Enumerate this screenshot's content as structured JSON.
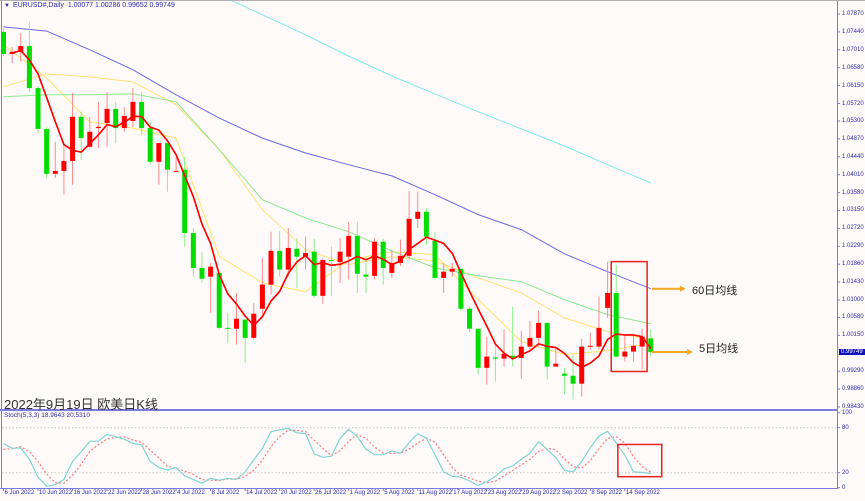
{
  "header": {
    "symbol_label": "EURUSD#,Daily",
    "ohlc_text": "1.00077 1.00286 0.99652 0.99749"
  },
  "title": "2022年9月19日 欧美日K线",
  "annotations": {
    "ma60_label": "60日均线",
    "ma5_label": "5日均线",
    "arrow_color": "#f5a623",
    "highlight_color": "#e8231e"
  },
  "stoch_label": "Stoch(5,3,3) 18.9643 20.5310",
  "colors": {
    "bull": "#ff0000",
    "bear": "#00dd00",
    "ma5": "#ff0000",
    "ma10": "#ffe566",
    "ma20": "#ffe07a",
    "ma30": "#8de88d",
    "ma60": "#6a6ae6",
    "ma120": "#7fe8ea",
    "stoch_main": "#7fd6d0",
    "stoch_signal": "#ff7a7a",
    "axis": "#7b7be0",
    "current_price_bg": "#1010c0"
  },
  "chart_data": [
    {
      "type": "candlestick",
      "symbol": "EURUSD#",
      "timeframe": "Daily",
      "up_color_meaning": "red = close above open, green = close below open",
      "y_axis_labels": [
        "1.07870",
        "1.07440",
        "1.07010",
        "1.06580",
        "1.06150",
        "1.05720",
        "1.05300",
        "1.04870",
        "1.04440",
        "1.04010",
        "1.03580",
        "1.03150",
        "1.02720",
        "1.02290",
        "1.01860",
        "1.01430",
        "1.01000",
        "1.00580",
        "1.00150",
        "0.99290",
        "0.98860",
        "0.98430"
      ],
      "current_price": "0.99749",
      "x_axis_labels": [
        "6 Jun 2022",
        "10 Jun 2022",
        "16 Jun 2022",
        "22 Jun 2022",
        "28 Jun 2022",
        "4 Jul 2022",
        "8 Jul 2022",
        "14 Jul 2022",
        "20 Jul 2022",
        "26 Jul 2022",
        "1 Aug 2022",
        "5 Aug 2022",
        "11 Aug 2022",
        "17 Aug 2022",
        "23 Aug 2022",
        "29 Aug 2022",
        "2 Sep 2022",
        "8 Sep 2022",
        "14 Sep 2022"
      ],
      "candle_fields": [
        "date",
        "open",
        "high",
        "low",
        "close"
      ],
      "candles": [
        [
          "2022-06-06",
          1.0744,
          1.0753,
          1.0686,
          1.0691
        ],
        [
          "2022-06-07",
          1.0691,
          1.0708,
          1.0669,
          1.0696
        ],
        [
          "2022-06-08",
          1.0696,
          1.0741,
          1.0672,
          1.071
        ],
        [
          "2022-06-09",
          1.071,
          1.0768,
          1.06,
          1.0609
        ],
        [
          "2022-06-10",
          1.0609,
          1.0614,
          1.0501,
          1.0511
        ],
        [
          "2022-06-13",
          1.0511,
          1.0516,
          1.0393,
          1.0403
        ],
        [
          "2022-06-14",
          1.0403,
          1.048,
          1.0393,
          1.041
        ],
        [
          "2022-06-15",
          1.041,
          1.0473,
          1.0353,
          1.0434
        ],
        [
          "2022-06-16",
          1.0434,
          1.0597,
          1.0377,
          1.054
        ],
        [
          "2022-06-17",
          1.054,
          1.0552,
          1.0436,
          1.0489
        ],
        [
          "2022-06-20",
          1.0468,
          1.054,
          1.0465,
          1.0504
        ],
        [
          "2022-06-21",
          1.0513,
          1.0576,
          1.0465,
          1.0516
        ],
        [
          "2022-06-22",
          1.0525,
          1.06,
          1.0468,
          1.0559
        ],
        [
          "2022-06-23",
          1.0559,
          1.0576,
          1.0477,
          1.0513
        ],
        [
          "2022-06-24",
          1.0513,
          1.0562,
          1.0504,
          1.0542
        ],
        [
          "2022-06-27",
          1.053,
          1.0609,
          1.0516,
          1.0576
        ],
        [
          "2022-06-28",
          1.0576,
          1.06,
          1.0496,
          1.0513
        ],
        [
          "2022-06-29",
          1.0513,
          1.0528,
          1.0425,
          1.0432
        ],
        [
          "2022-06-30",
          1.0432,
          1.0477,
          1.0377,
          1.0477
        ],
        [
          "2022-07-01",
          1.0477,
          1.0485,
          1.036,
          1.0413
        ],
        [
          "2022-07-04",
          1.0408,
          1.0444,
          1.0408,
          1.041
        ],
        [
          "2022-07-05",
          1.0413,
          1.0444,
          1.0228,
          1.0261
        ],
        [
          "2022-07-06",
          1.0261,
          1.0273,
          1.0156,
          1.0177
        ],
        [
          "2022-07-07",
          1.0177,
          1.0216,
          1.0141,
          1.0151
        ],
        [
          "2022-07-08",
          1.0156,
          1.0189,
          1.0069,
          1.018
        ],
        [
          "2022-07-11",
          1.0165,
          1.0167,
          1.0029,
          1.0033
        ],
        [
          "2022-07-12",
          1.0033,
          1.0069,
          0.9997,
          1.0031
        ],
        [
          "2022-07-13",
          1.0031,
          1.0117,
          0.9993,
          1.0055
        ],
        [
          "2022-07-14",
          1.0053,
          1.0053,
          0.9949,
          1.0009
        ],
        [
          "2022-07-15",
          1.0009,
          1.0093,
          1.0005,
          1.0067
        ],
        [
          "2022-07-18",
          1.0079,
          1.0201,
          1.0065,
          1.0137
        ],
        [
          "2022-07-19",
          1.0137,
          1.0264,
          1.0113,
          1.0218
        ],
        [
          "2022-07-20",
          1.0218,
          1.0266,
          1.0156,
          1.0173
        ],
        [
          "2022-07-21",
          1.0173,
          1.0273,
          1.0156,
          1.0225
        ],
        [
          "2022-07-22",
          1.0223,
          1.0249,
          1.0129,
          1.0204
        ],
        [
          "2022-07-25",
          1.0204,
          1.0252,
          1.0173,
          1.0213
        ],
        [
          "2022-07-26",
          1.0216,
          1.0247,
          1.0105,
          1.011
        ],
        [
          "2022-07-27",
          1.011,
          1.02,
          1.0091,
          1.0196
        ],
        [
          "2022-07-28",
          1.0196,
          1.0228,
          1.011,
          1.0194
        ],
        [
          "2022-07-29",
          1.0191,
          1.0249,
          1.0141,
          1.0216
        ],
        [
          "2022-08-01",
          1.0204,
          1.0288,
          1.0149,
          1.0254
        ],
        [
          "2022-08-02",
          1.0254,
          1.0288,
          1.0117,
          1.0163
        ],
        [
          "2022-08-03",
          1.0161,
          1.0204,
          1.0117,
          1.0156
        ],
        [
          "2022-08-04",
          1.0158,
          1.0249,
          1.0149,
          1.024
        ],
        [
          "2022-08-05",
          1.024,
          1.0247,
          1.0137,
          1.0177
        ],
        [
          "2022-08-08",
          1.0165,
          1.022,
          1.0153,
          1.0189
        ],
        [
          "2022-08-09",
          1.0189,
          1.0245,
          1.0182,
          1.0206
        ],
        [
          "2022-08-10",
          1.0206,
          1.0362,
          1.0196,
          1.0295
        ],
        [
          "2022-08-11",
          1.0295,
          1.036,
          1.0273,
          1.0312
        ],
        [
          "2022-08-12",
          1.0312,
          1.0321,
          1.0233,
          1.0252
        ],
        [
          "2022-08-15",
          1.0242,
          1.0264,
          1.0149,
          1.0153
        ],
        [
          "2022-08-16",
          1.0153,
          1.0189,
          1.0117,
          1.0168
        ],
        [
          "2022-08-17",
          1.0168,
          1.0189,
          1.0156,
          1.0175
        ],
        [
          "2022-08-18",
          1.0175,
          1.0175,
          1.0074,
          1.0079
        ],
        [
          "2022-08-19",
          1.0079,
          1.0084,
          1.0024,
          1.0031
        ],
        [
          "2022-08-22",
          1.0031,
          1.0031,
          0.9921,
          0.9937
        ],
        [
          "2022-08-23",
          0.9937,
          1.0012,
          0.9897,
          0.9964
        ],
        [
          "2022-08-24",
          0.9962,
          0.9993,
          0.9904,
          0.9959
        ],
        [
          "2022-08-25",
          0.9959,
          1.0029,
          0.994,
          0.9971
        ],
        [
          "2022-08-26",
          0.9966,
          1.0084,
          0.994,
          0.9961
        ],
        [
          "2022-08-29",
          0.9961,
          1.0026,
          0.9911,
          0.9988
        ],
        [
          "2022-08-30",
          0.9988,
          1.005,
          0.9981,
          1.0009
        ],
        [
          "2022-08-31",
          1.0009,
          1.0074,
          0.9988,
          1.0045
        ],
        [
          "2022-09-01",
          1.0045,
          1.0045,
          0.9909,
          0.994
        ],
        [
          "2022-09-02",
          0.994,
          0.9985,
          0.994,
          0.9947
        ],
        [
          "2022-09-05",
          0.9923,
          0.9937,
          0.9873,
          0.9918
        ],
        [
          "2022-09-06",
          0.9918,
          0.9969,
          0.9861,
          0.9899
        ],
        [
          "2022-09-07",
          0.9899,
          1.0007,
          0.9868,
          0.9988
        ],
        [
          "2022-09-08",
          0.9988,
          1.0021,
          0.9981,
          0.999
        ],
        [
          "2022-09-09",
          0.9988,
          1.0108,
          0.9981,
          1.0033
        ],
        [
          "2022-09-12",
          1.0081,
          1.0192,
          1.0057,
          1.0117
        ],
        [
          "2022-09-13",
          1.0117,
          1.0185,
          0.9962,
          0.9964
        ],
        [
          "2022-09-14",
          0.9964,
          1.0014,
          0.9952,
          0.9976
        ],
        [
          "2022-09-15",
          0.9976,
          1.0014,
          0.9952,
          0.999
        ],
        [
          "2022-09-16",
          0.9988,
          1.0031,
          0.9933,
          1.0012
        ],
        [
          "2022-09-19",
          1.00077,
          1.00286,
          0.99652,
          0.99749
        ]
      ],
      "moving_averages": [
        {
          "name": "5日均线",
          "period": 5,
          "color_key": "ma5",
          "computed_from_close": true
        },
        {
          "color_key": "ma10",
          "points": [
            [
              "2022-06-06",
              1.0713
            ],
            [
              "2022-06-13",
              1.0633
            ],
            [
              "2022-06-20",
              1.0528
            ],
            [
              "2022-06-27",
              1.0513
            ],
            [
              "2022-07-04",
              1.0489
            ],
            [
              "2022-07-11",
              1.0205
            ],
            [
              "2022-07-18",
              1.0141
            ],
            [
              "2022-07-25",
              1.012
            ],
            [
              "2022-08-01",
              1.0196
            ],
            [
              "2022-08-08",
              1.0216
            ],
            [
              "2022-08-15",
              1.0209
            ],
            [
              "2022-08-22",
              1.0101
            ],
            [
              "2022-08-29",
              1.0
            ],
            [
              "2022-09-05",
              0.9969
            ],
            [
              "2022-09-12",
              0.9978
            ],
            [
              "2022-09-19",
              0.9997
            ]
          ]
        },
        {
          "color_key": "ma20",
          "points": [
            [
              "2022-06-06",
              1.0612
            ],
            [
              "2022-06-13",
              1.0643
            ],
            [
              "2022-06-20",
              1.0636
            ],
            [
              "2022-06-27",
              1.0624
            ],
            [
              "2022-07-04",
              1.0569
            ],
            [
              "2022-07-11",
              1.0461
            ],
            [
              "2022-07-18",
              1.0317
            ],
            [
              "2022-07-25",
              1.0221
            ],
            [
              "2022-08-01",
              1.0185
            ],
            [
              "2022-08-08",
              1.0204
            ],
            [
              "2022-08-15",
              1.0194
            ],
            [
              "2022-08-22",
              1.0153
            ],
            [
              "2022-08-29",
              1.0117
            ],
            [
              "2022-09-05",
              1.0057
            ],
            [
              "2022-09-12",
              1.0024
            ],
            [
              "2022-09-19",
              1.0005
            ]
          ]
        },
        {
          "color_key": "ma30",
          "points": [
            [
              "2022-06-06",
              1.0588
            ],
            [
              "2022-06-13",
              1.0593
            ],
            [
              "2022-06-20",
              1.0593
            ],
            [
              "2022-06-27",
              1.0595
            ],
            [
              "2022-07-04",
              1.0576
            ],
            [
              "2022-07-11",
              1.0461
            ],
            [
              "2022-07-18",
              1.0341
            ],
            [
              "2022-07-25",
              1.0297
            ],
            [
              "2022-08-01",
              1.0264
            ],
            [
              "2022-08-08",
              1.0218
            ],
            [
              "2022-08-15",
              1.0177
            ],
            [
              "2022-08-22",
              1.0158
            ],
            [
              "2022-08-29",
              1.0144
            ],
            [
              "2022-09-05",
              1.0101
            ],
            [
              "2022-09-12",
              1.0065
            ],
            [
              "2022-09-19",
              1.0043
            ]
          ]
        },
        {
          "name": "60日均线",
          "period": 60,
          "color_key": "ma60",
          "points": [
            [
              "2022-06-06",
              1.0756
            ],
            [
              "2022-06-13",
              1.0746
            ],
            [
              "2022-06-20",
              1.0701
            ],
            [
              "2022-06-27",
              1.0653
            ],
            [
              "2022-07-04",
              1.0593
            ],
            [
              "2022-07-11",
              1.0537
            ],
            [
              "2022-07-18",
              1.0489
            ],
            [
              "2022-07-25",
              1.0453
            ],
            [
              "2022-08-01",
              1.0425
            ],
            [
              "2022-08-08",
              1.0398
            ],
            [
              "2022-08-15",
              1.0353
            ],
            [
              "2022-08-22",
              1.0305
            ],
            [
              "2022-08-29",
              1.0269
            ],
            [
              "2022-09-05",
              1.0211
            ],
            [
              "2022-09-12",
              1.0168
            ],
            [
              "2022-09-19",
              1.0127
            ]
          ]
        },
        {
          "color_key": "ma120",
          "points": [
            [
              "2022-07-11",
              1.0833
            ],
            [
              "2022-07-18",
              1.0785
            ],
            [
              "2022-07-25",
              1.0737
            ],
            [
              "2022-08-01",
              1.0686
            ],
            [
              "2022-08-08",
              1.0638
            ],
            [
              "2022-08-15",
              1.0595
            ],
            [
              "2022-08-22",
              1.0552
            ],
            [
              "2022-08-29",
              1.0511
            ],
            [
              "2022-09-05",
              1.047
            ],
            [
              "2022-09-12",
              1.0425
            ],
            [
              "2022-09-19",
              1.0381
            ]
          ]
        }
      ],
      "highlight_box": {
        "from": "2022-09-13",
        "to": "2022-09-16"
      }
    },
    {
      "type": "line",
      "indicator": "Stoch(5,3,3)",
      "y_axis_labels": [
        "100",
        "80",
        "20",
        "0"
      ],
      "ylim": [
        0,
        100
      ],
      "levels": [
        80,
        20
      ],
      "main": [
        59,
        52.5,
        53,
        38,
        14,
        2,
        4,
        11,
        35,
        48,
        62,
        62,
        71,
        68,
        64.5,
        59,
        57,
        35,
        27,
        23.6,
        26.7,
        15.6,
        11,
        6,
        12.5,
        10,
        12.5,
        11,
        21,
        37,
        52.5,
        74.7,
        77,
        79,
        73,
        72,
        45,
        40.5,
        42,
        66,
        78,
        68,
        51,
        44,
        44,
        49,
        46,
        60,
        72,
        66,
        44,
        21,
        15,
        14,
        9,
        3,
        8,
        15,
        25,
        29,
        38,
        46,
        61,
        51,
        40,
        23,
        21,
        35,
        53,
        69,
        75,
        60,
        43,
        21,
        20.5,
        18.9643
      ],
      "signal": [
        51,
        52,
        54.8,
        47.8,
        35,
        18,
        6.7,
        5.7,
        16.7,
        31.3,
        48.3,
        57.3,
        65,
        67,
        67.8,
        63.8,
        60.2,
        50.3,
        39.7,
        28.5,
        25.8,
        22,
        17.8,
        10.9,
        9.8,
        9.5,
        11.7,
        11.2,
        14.8,
        23,
        36.8,
        54.7,
        68.1,
        76.9,
        76.3,
        74.7,
        63.3,
        52.5,
        42.5,
        49.5,
        62,
        70.7,
        65.7,
        54.3,
        46.3,
        45.7,
        46.3,
        51.7,
        59.3,
        66,
        60.7,
        43.7,
        26.7,
        16.7,
        12.7,
        8.7,
        6.7,
        8.7,
        16,
        23,
        30.7,
        37.7,
        48.3,
        52.7,
        50.7,
        38,
        28,
        26.3,
        36.3,
        52.3,
        65.7,
        68,
        59.3,
        41.3,
        28.2,
        20.531
      ],
      "highlight_box": {
        "from": "2022-09-14",
        "to": "2022-09-19"
      }
    }
  ]
}
